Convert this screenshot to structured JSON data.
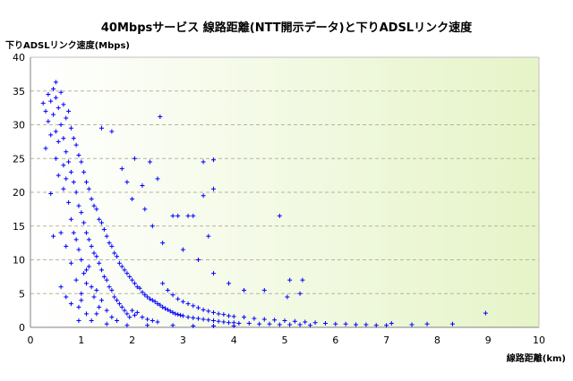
{
  "chart_data": {
    "type": "scatter",
    "title": "40Mbpsサービス 線路距離(NTT開示データ)と下りADSLリンク速度",
    "ylabel": "下りADSLリンク速度(Mbps)",
    "xlabel": "線路距離(km)",
    "xlim": [
      0,
      10
    ],
    "ylim": [
      0,
      40
    ],
    "x_ticks": [
      0,
      1,
      2,
      3,
      4,
      5,
      6,
      7,
      8,
      9,
      10
    ],
    "y_ticks": [
      0,
      5,
      10,
      15,
      20,
      25,
      30,
      35,
      40
    ],
    "grid": "horizontal dashed",
    "marker": "+",
    "marker_color": "#0000ff",
    "background_gradient": [
      "#ffffff",
      "#e6f4c8"
    ],
    "series": [
      {
        "points": [
          [
            0.25,
            33.2
          ],
          [
            0.3,
            32.0
          ],
          [
            0.3,
            26.5
          ],
          [
            0.35,
            34.5
          ],
          [
            0.35,
            30.5
          ],
          [
            0.4,
            33.5
          ],
          [
            0.4,
            28.5
          ],
          [
            0.4,
            19.8
          ],
          [
            0.45,
            35.3
          ],
          [
            0.45,
            31.5
          ],
          [
            0.5,
            36.3
          ],
          [
            0.5,
            34.0
          ],
          [
            0.5,
            29.0
          ],
          [
            0.5,
            25.0
          ],
          [
            0.55,
            32.5
          ],
          [
            0.55,
            27.5
          ],
          [
            0.55,
            22.5
          ],
          [
            0.6,
            34.8
          ],
          [
            0.6,
            30.0
          ],
          [
            0.6,
            6.0
          ],
          [
            0.65,
            33.0
          ],
          [
            0.65,
            28.0
          ],
          [
            0.65,
            24.0
          ],
          [
            0.65,
            20.5
          ],
          [
            0.7,
            31.0
          ],
          [
            0.7,
            26.0
          ],
          [
            0.7,
            22.0
          ],
          [
            0.7,
            12.0
          ],
          [
            0.7,
            4.5
          ],
          [
            0.75,
            32.0
          ],
          [
            0.75,
            24.5
          ],
          [
            0.75,
            18.5
          ],
          [
            0.8,
            29.5
          ],
          [
            0.8,
            23.0
          ],
          [
            0.8,
            16.0
          ],
          [
            0.8,
            9.5
          ],
          [
            0.8,
            3.5
          ],
          [
            0.85,
            28.0
          ],
          [
            0.85,
            21.5
          ],
          [
            0.85,
            14.0
          ],
          [
            0.9,
            27.0
          ],
          [
            0.9,
            20.0
          ],
          [
            0.9,
            13.0
          ],
          [
            0.9,
            7.0
          ],
          [
            0.95,
            25.5
          ],
          [
            0.95,
            18.0
          ],
          [
            0.95,
            11.5
          ],
          [
            0.95,
            3.0
          ],
          [
            1.0,
            24.5
          ],
          [
            1.0,
            17.0
          ],
          [
            1.0,
            10.0
          ],
          [
            1.0,
            5.0
          ],
          [
            1.05,
            23.0
          ],
          [
            1.05,
            15.5
          ],
          [
            1.05,
            8.0
          ],
          [
            1.1,
            21.5
          ],
          [
            1.1,
            14.0
          ],
          [
            1.1,
            6.5
          ],
          [
            1.1,
            2.0
          ],
          [
            1.15,
            20.5
          ],
          [
            1.15,
            13.0
          ],
          [
            1.15,
            9.0
          ],
          [
            1.2,
            19.0
          ],
          [
            1.2,
            12.0
          ],
          [
            1.2,
            6.0
          ],
          [
            1.2,
            1.0
          ],
          [
            1.25,
            18.0
          ],
          [
            1.25,
            11.0
          ],
          [
            1.25,
            4.5
          ],
          [
            1.3,
            17.5
          ],
          [
            1.3,
            10.5
          ],
          [
            1.3,
            5.5
          ],
          [
            1.35,
            16.0
          ],
          [
            1.35,
            9.5
          ],
          [
            1.35,
            3.0
          ],
          [
            1.4,
            15.5
          ],
          [
            1.4,
            8.5
          ],
          [
            1.4,
            4.0
          ],
          [
            1.45,
            14.5
          ],
          [
            1.45,
            7.5
          ],
          [
            1.5,
            13.5
          ],
          [
            1.5,
            7.0
          ],
          [
            1.5,
            2.5
          ],
          [
            1.55,
            12.5
          ],
          [
            1.55,
            6.0
          ],
          [
            1.6,
            12.0
          ],
          [
            1.6,
            5.5
          ],
          [
            1.6,
            1.5
          ],
          [
            1.65,
            11.0
          ],
          [
            1.65,
            4.5
          ],
          [
            1.7,
            10.5
          ],
          [
            1.7,
            4.0
          ],
          [
            1.75,
            9.5
          ],
          [
            1.75,
            3.5
          ],
          [
            1.8,
            9.0
          ],
          [
            1.8,
            3.0
          ],
          [
            1.85,
            8.5
          ],
          [
            1.85,
            2.5
          ],
          [
            1.9,
            8.0
          ],
          [
            1.9,
            2.0
          ],
          [
            1.95,
            7.5
          ],
          [
            1.95,
            1.5
          ],
          [
            2.0,
            7.0
          ],
          [
            2.0,
            2.5
          ],
          [
            2.05,
            6.5
          ],
          [
            2.05,
            1.8
          ],
          [
            2.1,
            6.0
          ],
          [
            2.1,
            2.2
          ],
          [
            2.15,
            5.8
          ],
          [
            2.2,
            5.2
          ],
          [
            2.2,
            1.5
          ],
          [
            2.25,
            4.8
          ],
          [
            2.3,
            4.5
          ],
          [
            2.3,
            1.2
          ],
          [
            2.35,
            4.2
          ],
          [
            2.4,
            4.0
          ],
          [
            2.4,
            1.0
          ],
          [
            2.45,
            3.8
          ],
          [
            2.5,
            3.5
          ],
          [
            2.5,
            0.8
          ],
          [
            2.55,
            3.3
          ],
          [
            2.6,
            3.0
          ],
          [
            2.6,
            6.5
          ],
          [
            2.65,
            2.8
          ],
          [
            2.7,
            2.6
          ],
          [
            2.7,
            5.5
          ],
          [
            2.75,
            2.4
          ],
          [
            2.8,
            2.2
          ],
          [
            2.8,
            4.8
          ],
          [
            2.85,
            2.0
          ],
          [
            2.9,
            1.9
          ],
          [
            2.9,
            4.2
          ],
          [
            2.95,
            1.8
          ],
          [
            3.0,
            1.7
          ],
          [
            3.0,
            3.8
          ],
          [
            3.1,
            1.5
          ],
          [
            3.1,
            3.5
          ],
          [
            3.2,
            1.4
          ],
          [
            3.2,
            3.2
          ],
          [
            3.3,
            1.3
          ],
          [
            3.3,
            2.9
          ],
          [
            3.4,
            1.2
          ],
          [
            3.4,
            2.6
          ],
          [
            3.5,
            1.1
          ],
          [
            3.5,
            2.4
          ],
          [
            3.6,
            1.0
          ],
          [
            3.6,
            2.2
          ],
          [
            3.7,
            0.9
          ],
          [
            3.7,
            2.0
          ],
          [
            3.8,
            0.8
          ],
          [
            3.8,
            1.9
          ],
          [
            3.9,
            0.7
          ],
          [
            3.9,
            1.7
          ],
          [
            4.0,
            0.7
          ],
          [
            4.0,
            1.6
          ],
          [
            4.1,
            0.6
          ],
          [
            4.2,
            1.5
          ],
          [
            4.3,
            0.6
          ],
          [
            4.4,
            1.3
          ],
          [
            4.5,
            0.5
          ],
          [
            4.6,
            1.2
          ],
          [
            4.7,
            0.5
          ],
          [
            4.8,
            1.1
          ],
          [
            4.9,
            0.4
          ],
          [
            5.0,
            1.0
          ],
          [
            5.1,
            0.4
          ],
          [
            5.2,
            0.9
          ],
          [
            5.3,
            0.4
          ],
          [
            5.4,
            0.8
          ],
          [
            5.5,
            0.3
          ],
          [
            5.6,
            0.7
          ],
          [
            5.8,
            0.6
          ],
          [
            6.0,
            0.5
          ],
          [
            6.2,
            0.5
          ],
          [
            6.4,
            0.4
          ],
          [
            6.6,
            0.4
          ],
          [
            6.8,
            0.3
          ],
          [
            7.0,
            0.3
          ],
          [
            7.1,
            0.6
          ],
          [
            7.5,
            0.4
          ],
          [
            7.8,
            0.5
          ],
          [
            8.3,
            0.5
          ],
          [
            8.95,
            2.1
          ],
          [
            1.4,
            29.5
          ],
          [
            1.6,
            29.0
          ],
          [
            2.05,
            25.0
          ],
          [
            2.35,
            24.5
          ],
          [
            2.55,
            31.2
          ],
          [
            3.4,
            24.5
          ],
          [
            3.6,
            24.8
          ],
          [
            3.6,
            20.5
          ],
          [
            3.4,
            19.5
          ],
          [
            2.5,
            22.0
          ],
          [
            2.2,
            21.0
          ],
          [
            2.8,
            16.5
          ],
          [
            2.9,
            16.5
          ],
          [
            3.1,
            16.5
          ],
          [
            3.2,
            16.5
          ],
          [
            3.5,
            13.5
          ],
          [
            4.9,
            16.5
          ],
          [
            5.1,
            7.0
          ],
          [
            5.35,
            7.0
          ],
          [
            5.05,
            4.5
          ],
          [
            5.3,
            5.0
          ],
          [
            4.6,
            5.5
          ],
          [
            4.2,
            5.5
          ],
          [
            3.9,
            6.5
          ],
          [
            3.6,
            8.0
          ],
          [
            3.3,
            10.0
          ],
          [
            3.0,
            11.5
          ],
          [
            2.6,
            12.5
          ],
          [
            2.4,
            15.0
          ],
          [
            2.25,
            17.5
          ],
          [
            2.0,
            19.0
          ],
          [
            1.9,
            21.5
          ],
          [
            1.8,
            23.5
          ],
          [
            1.1,
            8.5
          ],
          [
            1.0,
            4.0
          ],
          [
            0.95,
            1.0
          ],
          [
            1.3,
            2.0
          ],
          [
            1.5,
            0.5
          ],
          [
            1.7,
            1.0
          ],
          [
            1.9,
            0.3
          ],
          [
            2.3,
            0.3
          ],
          [
            2.8,
            0.3
          ],
          [
            3.2,
            0.2
          ],
          [
            3.6,
            0.2
          ],
          [
            4.0,
            0.2
          ],
          [
            0.45,
            13.5
          ],
          [
            0.6,
            14.0
          ]
        ]
      }
    ]
  }
}
